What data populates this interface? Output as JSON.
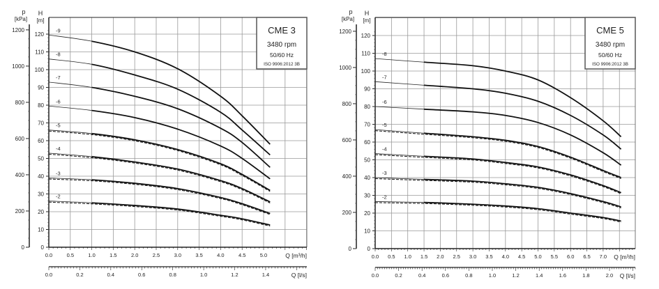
{
  "chart_data": [
    {
      "type": "line",
      "legend": {
        "title": "CME 3",
        "speed": "3480 rpm",
        "frequency": "50/60 Hz",
        "standard": "ISO 9906:2012 3B",
        "placement": "top-right"
      },
      "y_left_label": "p",
      "y_left_unit": "[kPa]",
      "y_label": "H",
      "y_unit": "[m]",
      "x_label": "Q [m³/h]",
      "x2_label": "Q [l/s]",
      "x_ticks": [
        "0.0",
        "0.5",
        "1.0",
        "1.5",
        "2.0",
        "2.5",
        "3.0",
        "3.5",
        "4.0",
        "4.5",
        "5.0"
      ],
      "x2_ticks": [
        "0.0",
        "0.2",
        "0.4",
        "0.6",
        "0.8",
        "1.0",
        "1.2",
        "1.4"
      ],
      "y_ticks": [
        "0",
        "10",
        "20",
        "30",
        "40",
        "50",
        "60",
        "70",
        "80",
        "90",
        "100",
        "110",
        "120"
      ],
      "p_ticks": [
        "0",
        "200",
        "400",
        "600",
        "800",
        "1000",
        "1200"
      ],
      "xlim": [
        0,
        6.0
      ],
      "ylim": [
        0,
        123
      ],
      "grid": true,
      "x": [
        0,
        1,
        2,
        3,
        4,
        4.5,
        5.15
      ],
      "series": [
        {
          "name": "-9",
          "values": [
            119.5,
            116,
            110,
            100.5,
            85,
            74,
            58
          ]
        },
        {
          "name": "-8",
          "values": [
            106,
            103,
            97,
            89,
            76,
            66,
            52
          ]
        },
        {
          "name": "-7",
          "values": [
            93,
            90,
            85,
            78,
            67,
            59,
            45
          ]
        },
        {
          "name": "-6",
          "values": [
            79.5,
            77,
            73,
            66.5,
            57,
            50,
            38.5
          ]
        },
        {
          "name": "-5",
          "values": [
            66,
            64,
            60.5,
            55,
            47,
            41,
            32
          ],
          "dashed_companion": true
        },
        {
          "name": "-4",
          "values": [
            53,
            51,
            48,
            44,
            37.5,
            33,
            25.5
          ],
          "dashed_companion": true
        },
        {
          "name": "-3",
          "values": [
            39,
            38,
            36,
            33,
            28,
            24.5,
            19
          ],
          "dashed_companion": true
        },
        {
          "name": "-2",
          "values": [
            26,
            25,
            23.5,
            21.5,
            18,
            16,
            12.5
          ],
          "dashed_companion": true
        }
      ]
    },
    {
      "type": "line",
      "legend": {
        "title": "CME 5",
        "speed": "3480 rpm",
        "frequency": "50/60 Hz",
        "standard": "ISO 9906:2012 3B",
        "placement": "top-right"
      },
      "y_left_label": "p",
      "y_left_unit": "[kPa]",
      "y_label": "H",
      "y_unit": "[m]",
      "x_label": "Q [m³/h]",
      "x2_label": "Q [l/s]",
      "x_ticks": [
        "0.0",
        "0.5",
        "1.0",
        "1.5",
        "2.0",
        "2.5",
        "3.0",
        "3.5",
        "4.0",
        "4.5",
        "5.0",
        "5.5",
        "6.0",
        "6.5",
        "7.0"
      ],
      "x2_ticks": [
        "0.0",
        "0.2",
        "0.4",
        "0.6",
        "0.8",
        "1.0",
        "1.2",
        "1.4",
        "1.6",
        "1.8",
        "2.0"
      ],
      "y_ticks": [
        "0",
        "10",
        "20",
        "30",
        "40",
        "50",
        "60",
        "70",
        "80",
        "90",
        "100",
        "110",
        "120"
      ],
      "p_ticks": [
        "0",
        "200",
        "400",
        "600",
        "800",
        "1000",
        "1200"
      ],
      "xlim": [
        0,
        8.0
      ],
      "ylim": [
        0,
        123
      ],
      "grid": true,
      "x": [
        0,
        1.5,
        3,
        4,
        5,
        6,
        7,
        7.55
      ],
      "series": [
        {
          "name": "-8",
          "values": [
            107,
            105,
            103,
            100,
            95,
            85,
            72,
            63
          ]
        },
        {
          "name": "-7",
          "values": [
            94,
            92,
            90,
            87.5,
            83,
            75,
            64,
            56
          ]
        },
        {
          "name": "-6",
          "values": [
            80,
            78.5,
            77,
            75,
            71,
            64,
            54,
            47
          ]
        },
        {
          "name": "-5",
          "values": [
            67,
            65,
            63,
            61,
            57.5,
            51.5,
            44,
            40
          ],
          "dashed_companion": true
        },
        {
          "name": "-4",
          "values": [
            53.5,
            52,
            50.5,
            48.5,
            46,
            41.5,
            35.5,
            31.5
          ],
          "dashed_companion": true
        },
        {
          "name": "-3",
          "values": [
            40,
            39,
            38,
            36.5,
            34.5,
            31,
            26.5,
            23.5
          ],
          "dashed_companion": true
        },
        {
          "name": "-2",
          "values": [
            26.5,
            26,
            25,
            24,
            22.5,
            20,
            17.5,
            15.5
          ],
          "dashed_companion": true
        }
      ]
    }
  ]
}
